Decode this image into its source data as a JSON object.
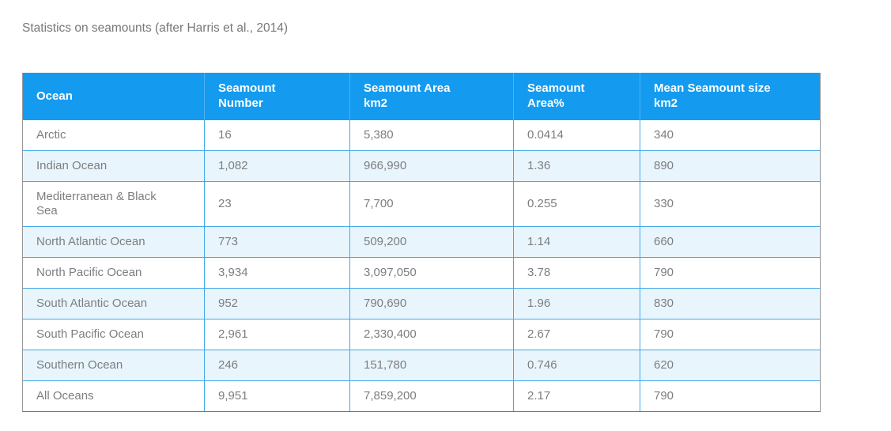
{
  "page": {
    "caption": "Statistics on seamounts (after Harris et al., 2014)"
  },
  "theme": {
    "header_bg": "#149bf0",
    "header_text": "#ffffff",
    "header_grid": "#4db1f3",
    "grid_line": "#41a8ea",
    "row_alt_bg": "#e9f5fc",
    "outer_border": "#97989b",
    "outer_border_bottom": "#6f7073",
    "cell_text": "#7c7e81",
    "title_text": "#76777a"
  },
  "chart_data": {
    "type": "table",
    "title": "Statistics on seamounts (after Harris et al., 2014)",
    "legend_position": "none",
    "grid": true,
    "columns": [
      {
        "key": "ocean",
        "label": "Ocean"
      },
      {
        "key": "seamount-number",
        "label": "Seamount\nNumber"
      },
      {
        "key": "seamount-area-km2",
        "label": "Seamount Area\nkm2"
      },
      {
        "key": "seamount-area-pct",
        "label": "Seamount\nArea%"
      },
      {
        "key": "mean-seamount-size-km2",
        "label": "Mean Seamount size\nkm2"
      }
    ],
    "rows": [
      [
        "Arctic",
        "16",
        "5,380",
        "0.0414",
        "340"
      ],
      [
        "Indian Ocean",
        "1,082",
        "966,990",
        "1.36",
        "890"
      ],
      [
        "Mediterranean & Black\nSea",
        "23",
        "7,700",
        "0.255",
        "330"
      ],
      [
        "North Atlantic Ocean",
        "773",
        "509,200",
        "1.14",
        "660"
      ],
      [
        "North Pacific Ocean",
        "3,934",
        "3,097,050",
        "3.78",
        "790"
      ],
      [
        "South Atlantic Ocean",
        "952",
        "790,690",
        "1.96",
        "830"
      ],
      [
        "South Pacific Ocean",
        "2,961",
        "2,330,400",
        "2.67",
        "790"
      ],
      [
        "Southern Ocean",
        "246",
        "151,780",
        "0.746",
        "620"
      ],
      [
        "All Oceans",
        "9,951",
        "7,859,200",
        "2.17",
        "790"
      ]
    ],
    "rows_numeric": {
      "seamount_number": [
        16,
        1082,
        23,
        773,
        3934,
        952,
        2961,
        246,
        9951
      ],
      "seamount_area_km2": [
        5380,
        966990,
        7700,
        509200,
        3097050,
        790690,
        2330400,
        151780,
        7859200
      ],
      "seamount_area_pct": [
        0.0414,
        1.36,
        0.255,
        1.14,
        3.78,
        1.96,
        2.67,
        0.746,
        2.17
      ],
      "mean_seamount_size_km2": [
        340,
        890,
        330,
        660,
        790,
        830,
        790,
        620,
        790
      ]
    }
  }
}
